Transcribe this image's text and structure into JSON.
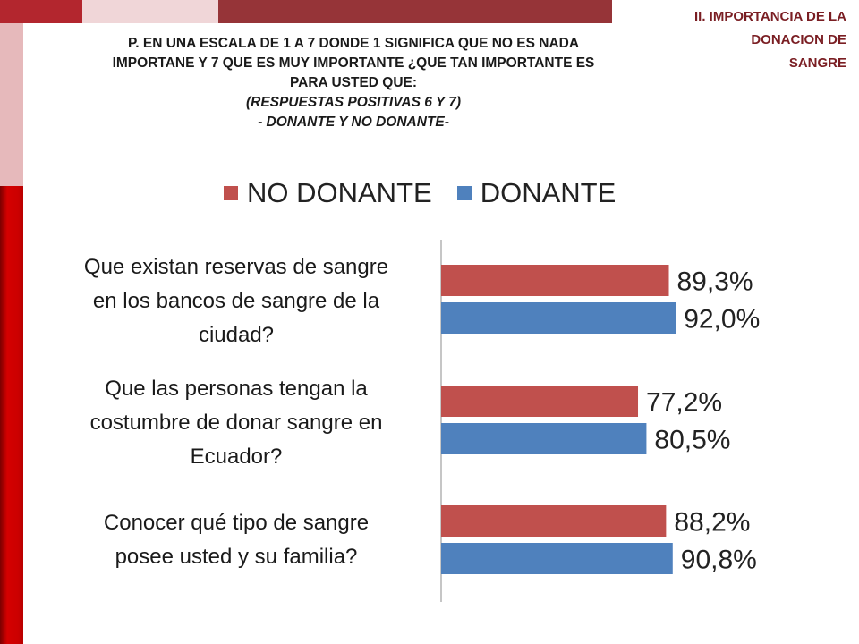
{
  "header": {
    "section": "II. IMPORTANCIA DE LA DONACION DE SANGRE",
    "section_lines": [
      "II. IMPORTANCIA DE LA",
      "DONACION DE",
      "SANGRE"
    ],
    "question_lines": [
      "P. EN UNA ESCALA DE 1 A 7 DONDE 1 SIGNIFICA QUE NO ES NADA",
      "IMPORTANE Y 7 QUE ES MUY IMPORTANTE ¿QUE TAN IMPORTANTE ES",
      "PARA USTED QUE:",
      "(RESPUESTAS POSITIVAS 6 Y 7)",
      "- DONANTE Y NO DONANTE-"
    ]
  },
  "decor": {
    "top_colors": [
      "#b3262e",
      "#f0d6d8",
      "#963438"
    ],
    "left_colors": [
      "#e6b9bb",
      "#cc0000"
    ]
  },
  "chart_data": {
    "type": "bar",
    "orientation": "horizontal",
    "categories": [
      "Que existan reservas de sangre en los bancos de sangre de la ciudad?",
      "Que las personas tengan la costumbre de donar sangre en Ecuador?",
      "Conocer qué tipo de sangre posee usted y su familia?"
    ],
    "category_lines": [
      [
        "Que existan reservas de sangre",
        "en los bancos de sangre de la",
        "ciudad?"
      ],
      [
        "Que las personas tengan la",
        "costumbre de donar sangre en",
        "Ecuador?"
      ],
      [
        "Conocer qué tipo de sangre",
        "posee usted y su familia?"
      ]
    ],
    "series": [
      {
        "name": "NO DONANTE",
        "color": "#c0504d",
        "values": [
          89.3,
          77.2,
          88.2
        ],
        "labels": [
          "89,3%",
          "77,2%",
          "88,2%"
        ]
      },
      {
        "name": "DONANTE",
        "color": "#4f81bd",
        "values": [
          92.0,
          80.5,
          90.8
        ],
        "labels": [
          "92,0%",
          "80,5%",
          "90,8%"
        ]
      }
    ],
    "xlim": [
      0,
      100
    ],
    "legend": "top",
    "grid": false
  }
}
